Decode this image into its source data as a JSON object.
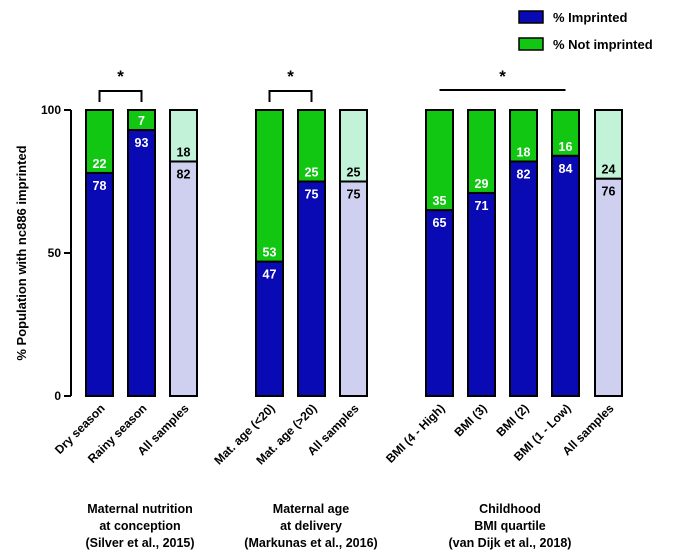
{
  "chart_data": {
    "type": "bar",
    "stacked": true,
    "ylabel": "% Population with nc886 imprinted",
    "ylim": [
      0,
      100
    ],
    "yticks": [
      0,
      50,
      100
    ],
    "legend": {
      "placement": "top-right",
      "items": [
        {
          "label": "% Imprinted",
          "color": "#0a0ab4"
        },
        {
          "label": "% Not imprinted",
          "color": "#11c711"
        }
      ]
    },
    "groups": [
      {
        "caption": [
          "Maternal nutrition",
          "at conception",
          "(Silver et al., 2015)"
        ],
        "significance": "*",
        "bars": [
          {
            "category": "Dry season",
            "imprinted": 78,
            "not_imprinted": 22,
            "style": "main"
          },
          {
            "category": "Rainy season",
            "imprinted": 93,
            "not_imprinted": 7,
            "style": "main"
          },
          {
            "category": "All samples",
            "imprinted": 82,
            "not_imprinted": 18,
            "style": "light"
          }
        ]
      },
      {
        "caption": [
          "Maternal age",
          "at delivery",
          "(Markunas et al., 2016)"
        ],
        "significance": "*",
        "bars": [
          {
            "category": "Mat. age (<20)",
            "imprinted": 47,
            "not_imprinted": 53,
            "style": "main"
          },
          {
            "category": "Mat. age (>20)",
            "imprinted": 75,
            "not_imprinted": 25,
            "style": "main"
          },
          {
            "category": "All samples",
            "imprinted": 75,
            "not_imprinted": 25,
            "style": "light"
          }
        ]
      },
      {
        "caption": [
          "Childhood",
          "BMI quartile",
          "(van Dijk et al., 2018)"
        ],
        "significance": "*",
        "bars": [
          {
            "category": "BMI (4 - High)",
            "imprinted": 65,
            "not_imprinted": 35,
            "style": "main"
          },
          {
            "category": "BMI (3)",
            "imprinted": 71,
            "not_imprinted": 29,
            "style": "main"
          },
          {
            "category": "BMI (2)",
            "imprinted": 82,
            "not_imprinted": 18,
            "style": "main"
          },
          {
            "category": "BMI (1 - Low)",
            "imprinted": 84,
            "not_imprinted": 16,
            "style": "main"
          },
          {
            "category": "All samples",
            "imprinted": 76,
            "not_imprinted": 24,
            "style": "light"
          }
        ]
      }
    ],
    "colors": {
      "imprinted": "#0a0ab4",
      "not_imprinted": "#11c711",
      "imprinted_light": "#cfcff0",
      "not_imprinted_light": "#c2f2d8",
      "outline": "#000000"
    }
  }
}
